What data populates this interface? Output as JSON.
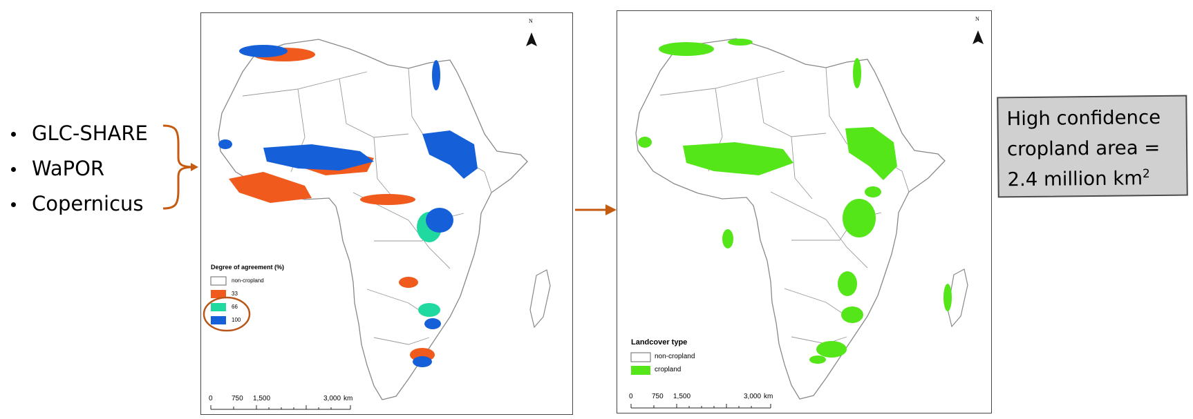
{
  "sources": {
    "items": [
      "GLC-SHARE",
      "WaPOR",
      "Copernicus"
    ]
  },
  "left_map": {
    "north_label": "N",
    "legend": {
      "title": "Degree of agreement (%)",
      "items": [
        {
          "label": "non-cropland",
          "color": "#ffffff"
        },
        {
          "label": "33",
          "color": "#f05a1c"
        },
        {
          "label": "66",
          "color": "#1fd9a0"
        },
        {
          "label": "100",
          "color": "#1560d8"
        }
      ]
    },
    "scale": {
      "ticks": [
        "0",
        "750",
        "1,500",
        "3,000"
      ],
      "unit": "km"
    }
  },
  "right_map": {
    "north_label": "N",
    "legend": {
      "title": "Landcover type",
      "items": [
        {
          "label": "non-cropland",
          "color": "#ffffff"
        },
        {
          "label": "cropland",
          "color": "#55e61a"
        }
      ]
    },
    "scale": {
      "ticks": [
        "0",
        "750",
        "1,500",
        "3,000"
      ],
      "unit": "km"
    }
  },
  "callout": {
    "line1": "High confidence",
    "line2": "cropland area =",
    "line3_main": "2.4 million km",
    "line3_sup": "2"
  },
  "colors": {
    "arrow": "#c55a11",
    "highlight_ring": "#b8561a",
    "border": "#7a7a7a"
  }
}
